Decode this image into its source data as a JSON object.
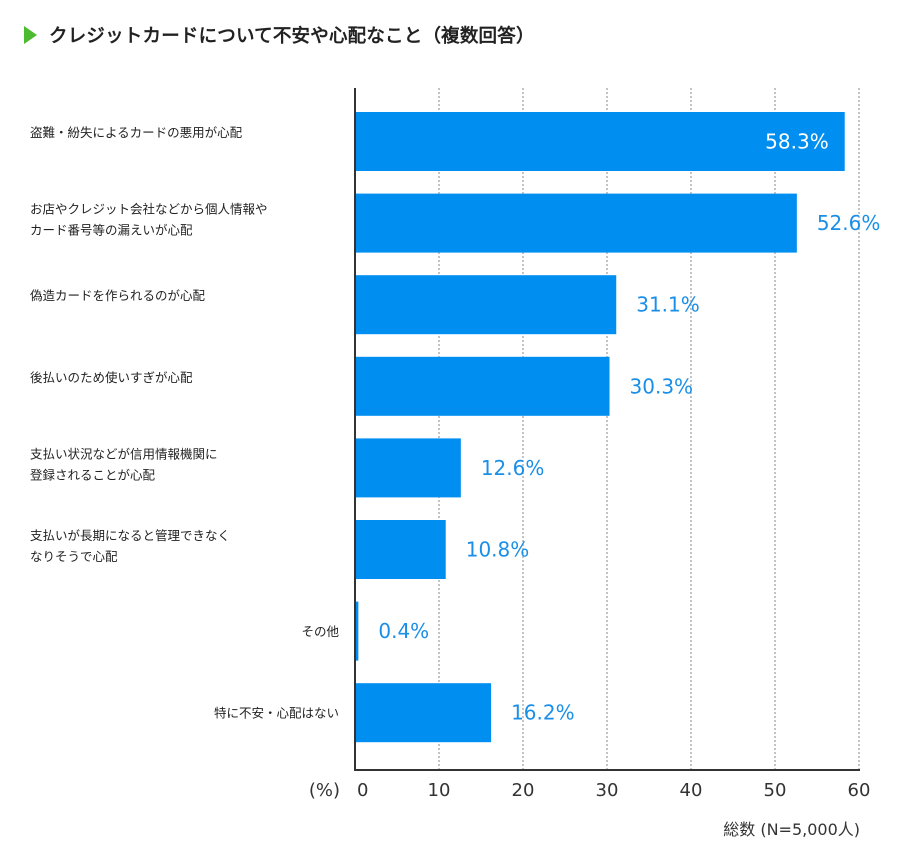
{
  "title": "クレジットカードについて不安や心配なこと（複数回答）",
  "colors": {
    "bar": "#008ef0",
    "value_label_outside": "#1a8fe8",
    "value_label_inside": "#ffffff",
    "title_marker": "#4cbb2f",
    "axis": "#333333",
    "grid": "#aaaaaa"
  },
  "note": "総数 (N=5,000人)",
  "chart_data": {
    "type": "bar",
    "orientation": "horizontal",
    "title": "クレジットカードについて不安や心配なこと（複数回答）",
    "xlabel": "(%)",
    "ylabel": "",
    "xlim": [
      0,
      60
    ],
    "xticks": [
      0,
      10,
      20,
      30,
      40,
      50,
      60
    ],
    "grid": true,
    "categories": [
      [
        "盗難・紛失によるカードの悪用が心配"
      ],
      [
        "お店やクレジット会社などから個人情報や",
        "カード番号等の漏えいが心配"
      ],
      [
        "偽造カードを作られるのが心配"
      ],
      [
        "後払いのため使いすぎが心配"
      ],
      [
        "支払い状況などが信用情報機関に",
        "登録されることが心配"
      ],
      [
        "支払いが長期になると管理できなく",
        "なりそうで心配"
      ],
      [
        "その他"
      ],
      [
        "特に不安・心配はない"
      ]
    ],
    "values": [
      58.3,
      52.6,
      31.1,
      30.3,
      12.6,
      10.8,
      0.4,
      16.2
    ],
    "value_labels": [
      "58.3%",
      "52.6%",
      "31.1%",
      "30.3%",
      "12.6%",
      "10.8%",
      "0.4%",
      "16.2%"
    ],
    "sample": "総数 (N=5,000人)"
  }
}
